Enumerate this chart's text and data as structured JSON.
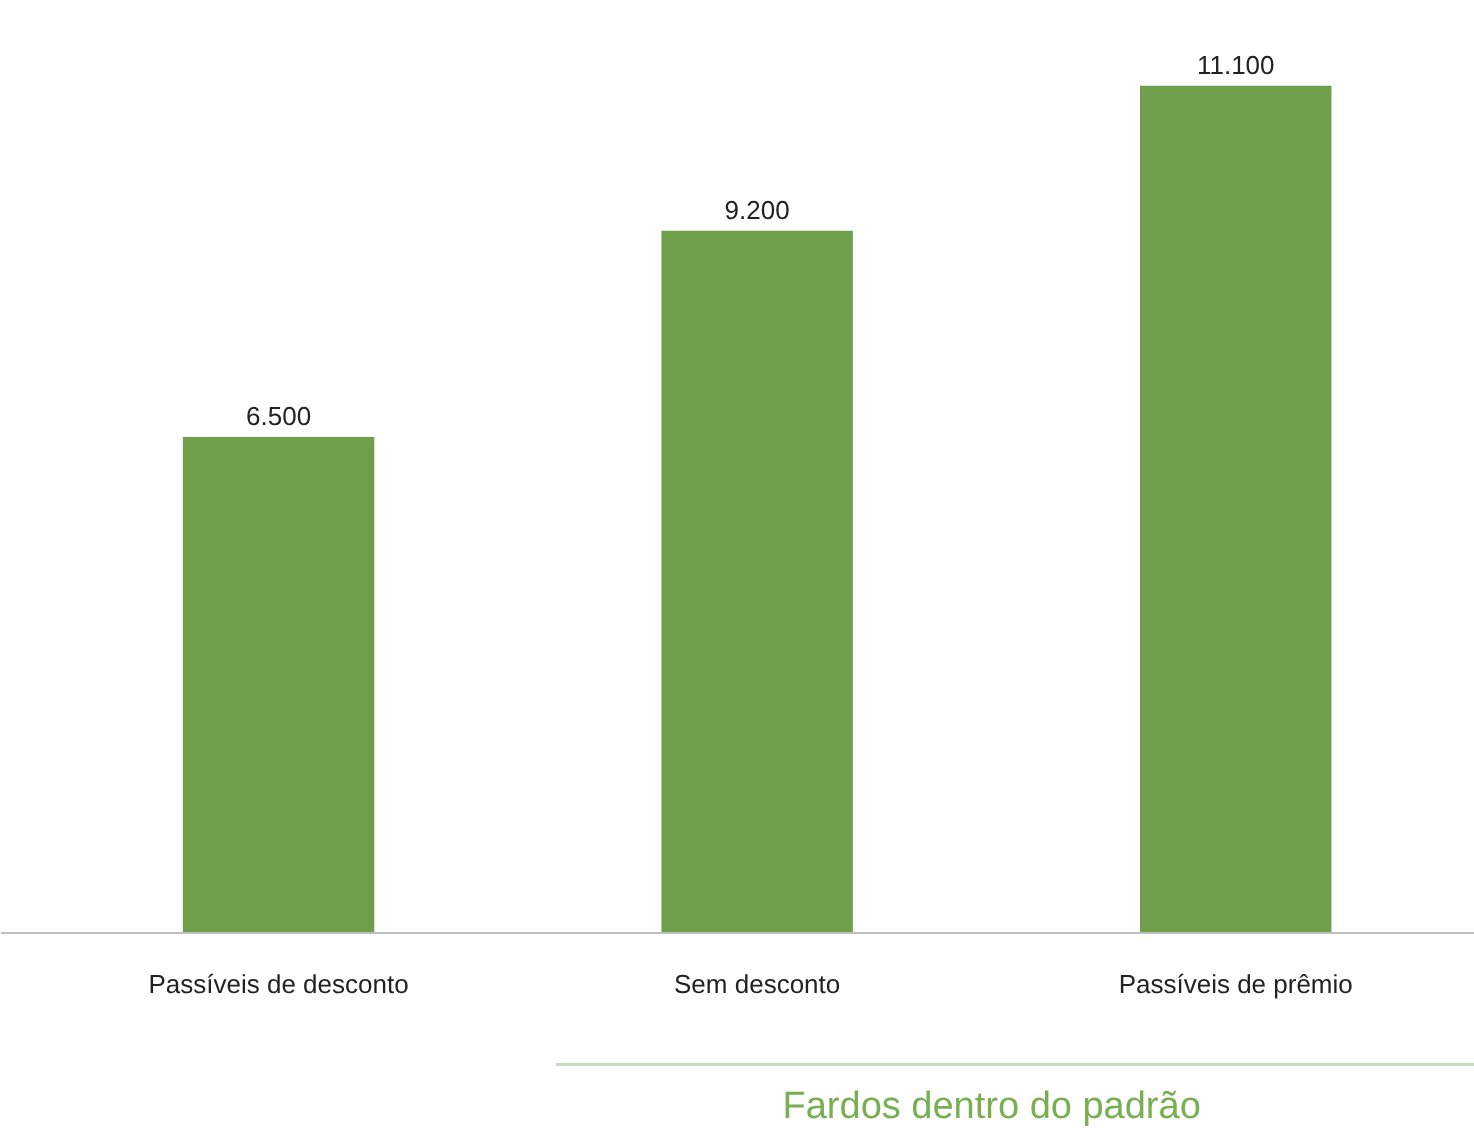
{
  "chart_data": {
    "type": "bar",
    "categories": [
      "Passíveis de desconto",
      "Sem desconto",
      "Passíveis de prêmio"
    ],
    "values": [
      6500,
      9200,
      11100
    ],
    "value_labels": [
      "6.500",
      "9.200",
      "11.100"
    ],
    "color": "#6f9f4a",
    "annotations": [
      "Fardos dentro do padrão"
    ],
    "grid": false
  }
}
